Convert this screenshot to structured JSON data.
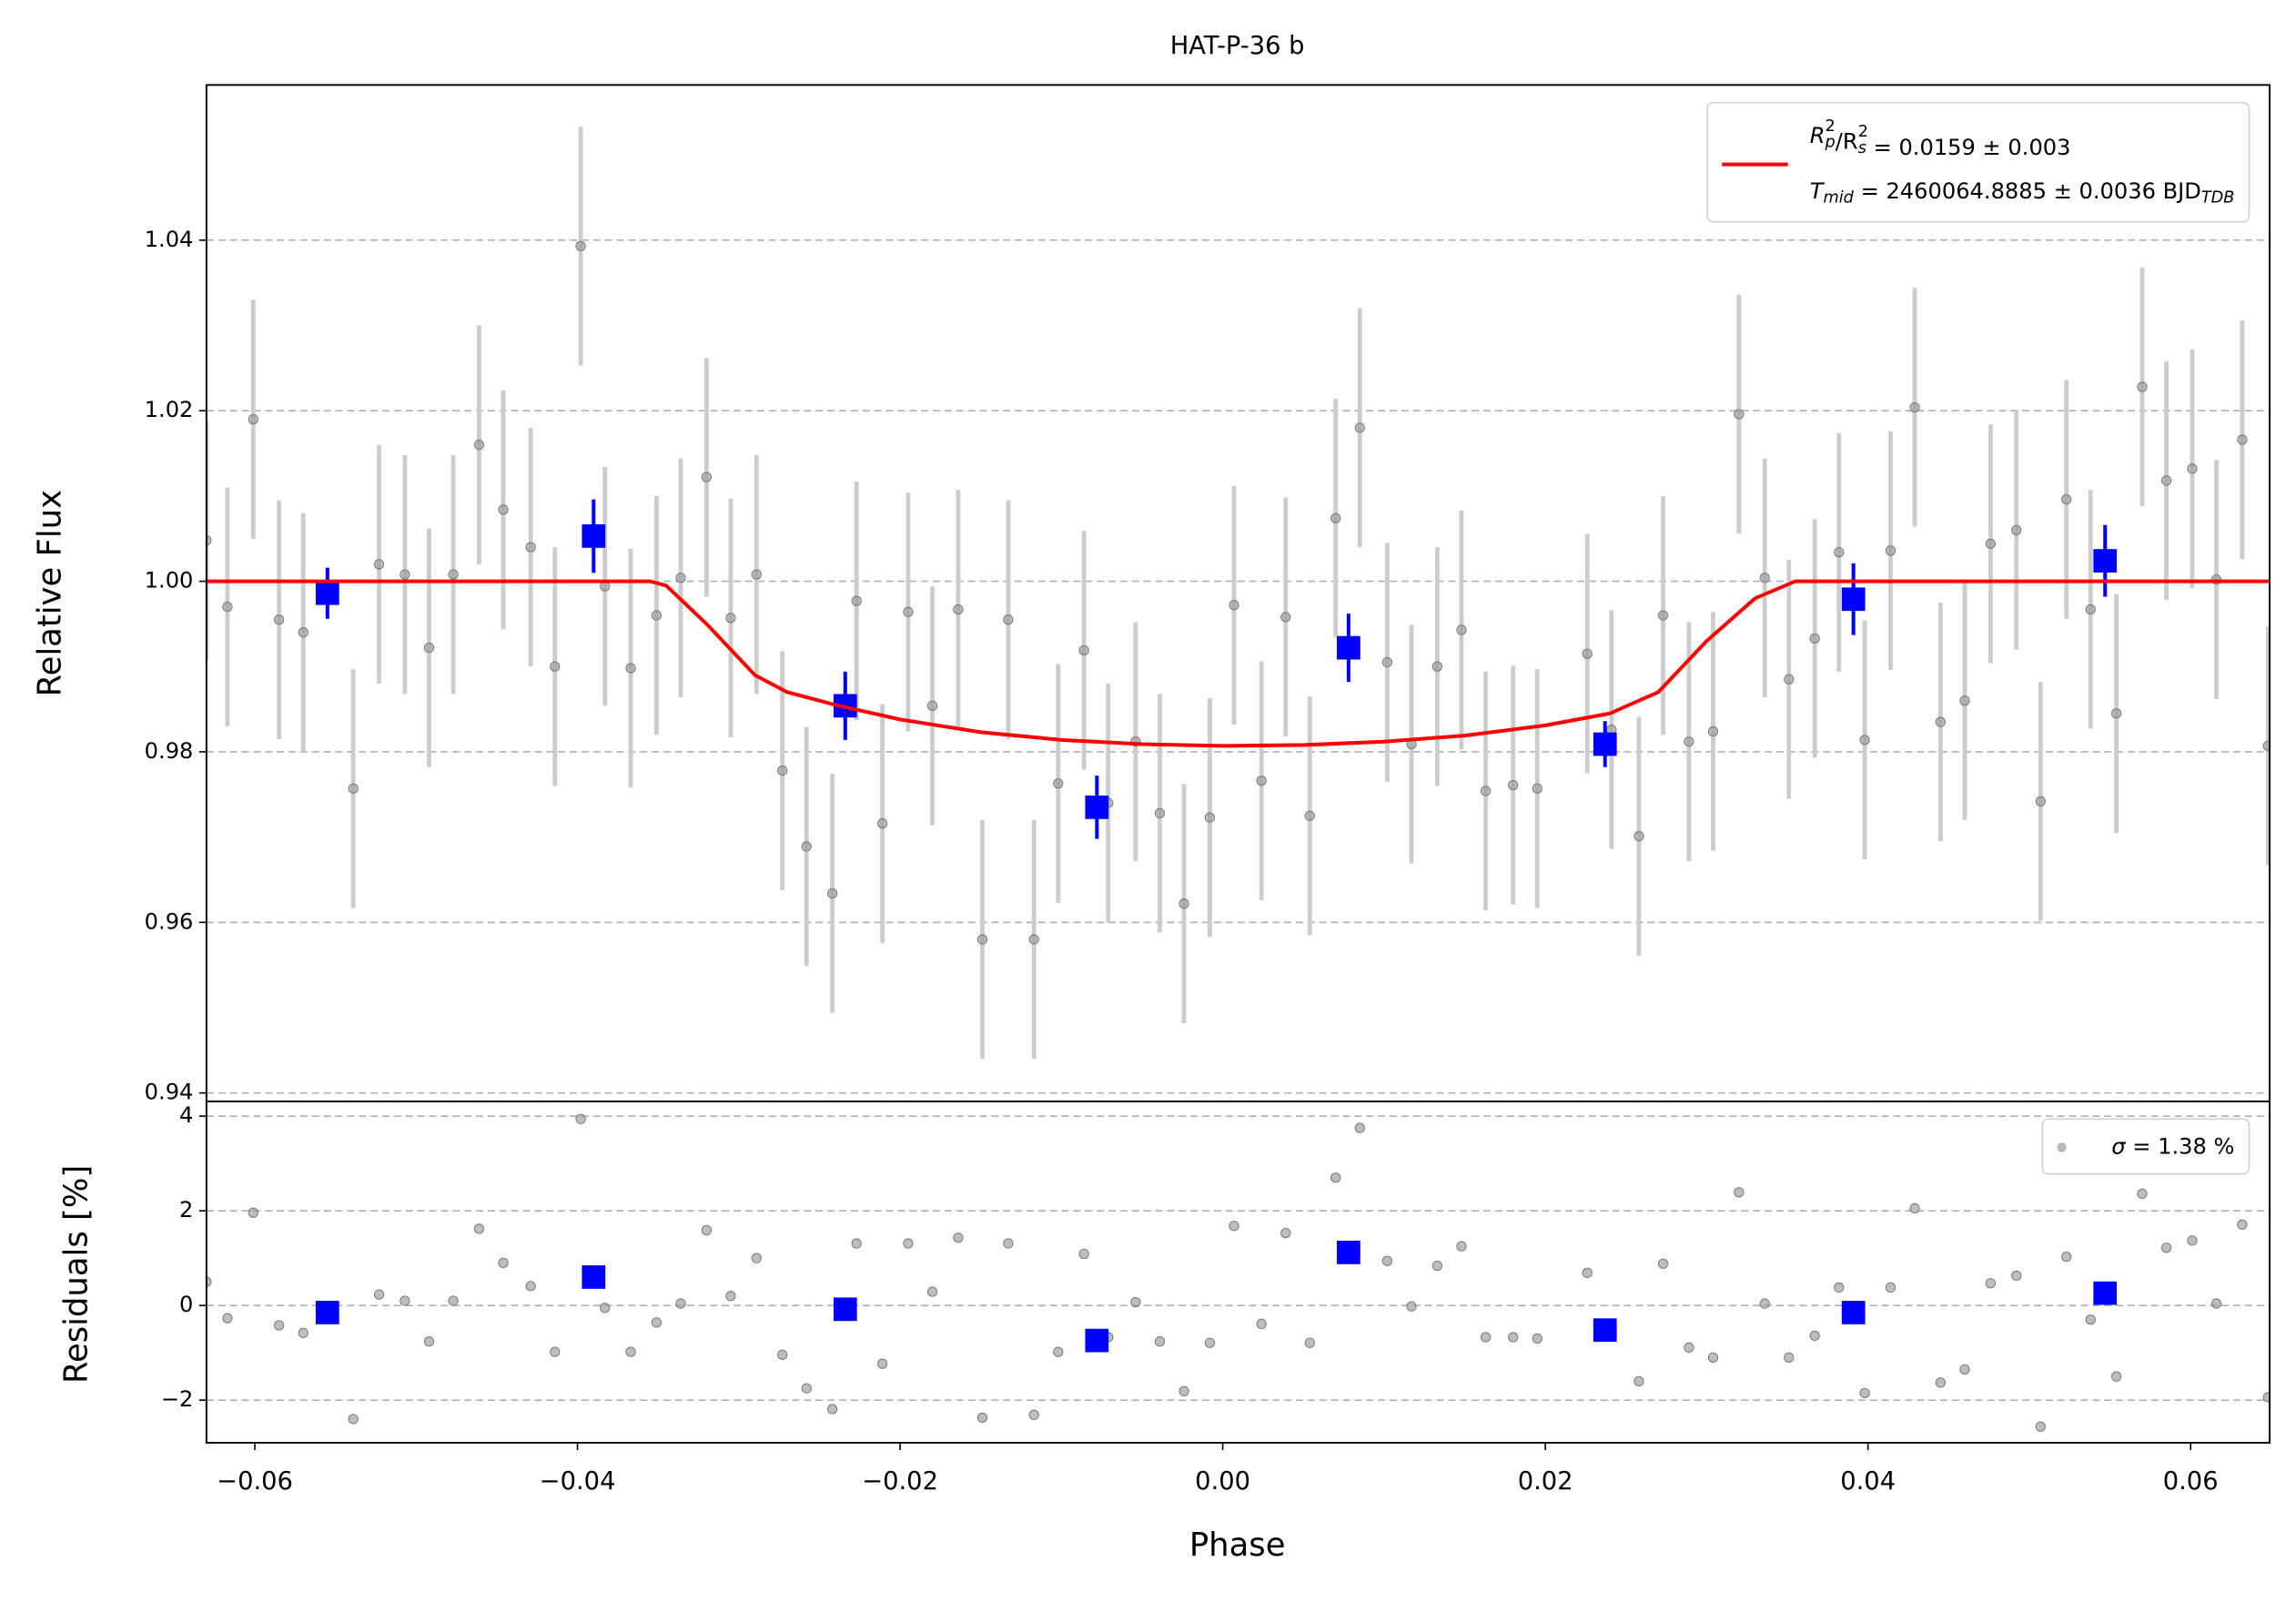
{
  "chart_data": [
    {
      "type": "scatter",
      "title": "HAT-P-36 b",
      "y_label": "Relative Flux",
      "xlim": [
        -0.063,
        0.0649
      ],
      "ylim": [
        0.939,
        1.0582
      ],
      "yticks": [
        0.94,
        0.96,
        0.98,
        {
          "value": 1,
          "label": "1.00"
        },
        1.02,
        1.04
      ],
      "grid": true,
      "legend": "upper right",
      "series": [
        {
          "color": "#999999",
          "error_color": "#cccccc",
          "marker": "circle",
          "yerr": 0.014,
          "x": [
            -0.063,
            -0.0617,
            -0.0601,
            -0.0585,
            -0.057,
            -0.0539,
            -0.0523,
            -0.0507,
            -0.0492,
            -0.0477,
            -0.0461,
            -0.0446,
            -0.0429,
            -0.0414,
            -0.0398,
            -0.0383,
            -0.0367,
            -0.0351,
            -0.0336,
            -0.032,
            -0.0305,
            -0.0289,
            -0.0273,
            -0.0258,
            -0.0242,
            -0.0227,
            -0.0211,
            -0.0195,
            -0.018,
            -0.0164,
            -0.0149,
            -0.0133,
            -0.0117,
            -0.0102,
            -0.0086,
            -0.0071,
            -0.0054,
            -0.0039,
            -0.0024,
            -0.0008,
            0.0007,
            0.0024,
            0.0039,
            0.0054,
            0.007,
            0.0085,
            0.0102,
            0.0117,
            0.0133,
            0.0148,
            0.0163,
            0.018,
            0.0195,
            0.0226,
            0.0241,
            0.0258,
            0.0273,
            0.0289,
            0.0304,
            0.032,
            0.0336,
            0.0351,
            0.0367,
            0.0382,
            0.0398,
            0.0414,
            0.0429,
            0.0445,
            0.046,
            0.0476,
            0.0492,
            0.0507,
            0.0523,
            0.0538,
            0.0554,
            0.057,
            0.0585,
            0.0601,
            0.0616,
            0.0632,
            0.0648
          ],
          "y": [
            1.0048,
            0.997,
            1.019,
            0.9955,
            0.994,
            0.9757,
            1.002,
            1.0008,
            0.9922,
            1.0008,
            1.016,
            1.0084,
            1.004,
            0.99,
            1.0393,
            0.9994,
            0.9898,
            0.996,
            1.0004,
            1.0122,
            0.9957,
            1.0008,
            0.9778,
            0.9689,
            0.9634,
            0.9977,
            0.9716,
            0.9964,
            0.9854,
            0.9967,
            0.958,
            0.9955,
            0.958,
            0.9763,
            0.9919,
            0.974,
            0.9812,
            0.9728,
            0.9622,
            0.9723,
            0.9972,
            0.9766,
            0.9958,
            0.9725,
            1.0074,
            1.018,
            0.9905,
            0.9809,
            0.99,
            0.9943,
            0.9754,
            0.9761,
            0.9757,
            0.9915,
            0.9826,
            0.9701,
            0.996,
            0.9812,
            0.9824,
            1.0196,
            1.0004,
            0.9885,
            0.9933,
            1.0034,
            0.9814,
            1.0036,
            1.0204,
            0.9835,
            0.986,
            1.0044,
            1.006,
            0.9742,
            1.0096,
            0.9967,
            0.9845,
            1.0228,
            1.0118,
            1.0132,
            1.0002,
            1.0166,
            0.9807
          ]
        },
        {
          "color": "#0000ff",
          "error_color": "#0000ff",
          "marker": "square",
          "x": [
            -0.0555,
            -0.039,
            -0.0234,
            -0.0078,
            0.0078,
            0.0237,
            0.0391,
            0.0547
          ],
          "y": [
            0.9986,
            1.0053,
            0.9854,
            0.9735,
            0.9922,
            0.9809,
            0.9979,
            1.0024
          ],
          "yerr": [
            0.003,
            0.0043,
            0.004,
            0.0037,
            0.004,
            0.0027,
            0.0042,
            0.0042
          ]
        },
        {
          "color": "#ff0000",
          "line": true,
          "label": [
            [
              "R",
              {
                "sup": "2",
                "sub": "p"
              },
              "/R",
              {
                "sup": "2",
                "sub": "s"
              },
              " = 0.0159 ± 0.003"
            ],
            [
              "T",
              {
                "sub": "mid"
              },
              " = 2460064.8885 ± 0.0036 BJD",
              {
                "sub": "TDB"
              }
            ]
          ],
          "x": [
            -0.063,
            -0.0355,
            -0.0345,
            -0.032,
            -0.029,
            -0.027,
            -0.024,
            -0.02,
            -0.015,
            -0.01,
            -0.005,
            0,
            0.005,
            0.01,
            0.015,
            0.02,
            0.024,
            0.027,
            0.03,
            0.033,
            0.0355,
            0.0649
          ],
          "y": [
            1,
            1,
            0.9995,
            0.995,
            0.989,
            0.987,
            0.9855,
            0.9838,
            0.9823,
            0.9814,
            0.9809,
            0.9807,
            0.9808,
            0.9812,
            0.9819,
            0.9831,
            0.9845,
            0.987,
            0.993,
            0.998,
            1,
            1
          ]
        }
      ]
    },
    {
      "type": "scatter",
      "y_label": "Residuals [%]",
      "x_label": "Phase",
      "xlim": [
        -0.063,
        0.0649
      ],
      "ylim": [
        -2.9,
        4.31
      ],
      "xticks": [
        {
          "value": -0.06,
          "label": "−0.06"
        },
        {
          "value": -0.04,
          "label": "−0.04"
        },
        {
          "value": -0.02,
          "label": "−0.02"
        },
        {
          "value": 0,
          "label": "0.00"
        },
        0.02,
        0.04,
        0.06
      ],
      "yticks": [
        {
          "value": -2,
          "label": "−2"
        },
        0,
        2,
        4
      ],
      "grid": true,
      "legend": "upper right",
      "series": [
        {
          "color": "#999999",
          "marker": "circle",
          "label": [
            [
              "σ",
              " = 1.38 %"
            ]
          ],
          "x": [
            -0.063,
            -0.0617,
            -0.0601,
            -0.0585,
            -0.057,
            -0.0539,
            -0.0523,
            -0.0507,
            -0.0492,
            -0.0477,
            -0.0461,
            -0.0446,
            -0.0429,
            -0.0414,
            -0.0398,
            -0.0383,
            -0.0367,
            -0.0351,
            -0.0336,
            -0.032,
            -0.0305,
            -0.0289,
            -0.0273,
            -0.0258,
            -0.0242,
            -0.0227,
            -0.0211,
            -0.0195,
            -0.018,
            -0.0164,
            -0.0149,
            -0.0133,
            -0.0117,
            -0.0102,
            -0.0086,
            -0.0071,
            -0.0054,
            -0.0039,
            -0.0024,
            -0.0008,
            0.0007,
            0.0024,
            0.0039,
            0.0054,
            0.007,
            0.0085,
            0.0102,
            0.0117,
            0.0133,
            0.0148,
            0.0163,
            0.018,
            0.0195,
            0.0226,
            0.0241,
            0.0258,
            0.0273,
            0.0289,
            0.0304,
            0.032,
            0.0336,
            0.0351,
            0.0367,
            0.0382,
            0.0398,
            0.0414,
            0.0429,
            0.0445,
            0.046,
            0.0476,
            0.0492,
            0.0507,
            0.0523,
            0.0538,
            0.0554,
            0.057,
            0.0585,
            0.0601,
            0.0616,
            0.0632,
            0.0648
          ],
          "y": [
            0.5,
            -0.27,
            1.96,
            -0.42,
            -0.58,
            -2.4,
            0.23,
            0.1,
            -0.76,
            0.1,
            1.62,
            0.9,
            0.41,
            -0.98,
            3.94,
            -0.05,
            -0.98,
            -0.36,
            0.04,
            1.59,
            0.2,
            1.0,
            -1.04,
            -1.75,
            -2.19,
            1.31,
            -1.23,
            1.31,
            0.29,
            1.43,
            -2.37,
            1.31,
            -2.31,
            -0.98,
            1.09,
            -0.67,
            0.07,
            -0.76,
            -1.81,
            -0.79,
            1.68,
            -0.39,
            1.53,
            -0.79,
            2.7,
            3.75,
            0.94,
            -0.02,
            0.84,
            1.25,
            -0.67,
            -0.67,
            -0.7,
            0.69,
            -0.39,
            -1.6,
            0.88,
            -0.89,
            -1.1,
            2.39,
            0.04,
            -1.1,
            -0.64,
            0.38,
            -1.85,
            0.38,
            2.05,
            -1.63,
            -1.35,
            0.47,
            0.63,
            -2.56,
            1.03,
            -0.3,
            -1.5,
            2.36,
            1.22,
            1.37,
            0.04,
            1.71,
            -1.94
          ]
        },
        {
          "color": "#0000ff",
          "marker": "square",
          "x": [
            -0.0555,
            -0.039,
            -0.0234,
            -0.0078,
            0.0078,
            0.0237,
            0.0391,
            0.0547
          ],
          "y": [
            -0.15,
            0.6,
            -0.08,
            -0.74,
            1.12,
            -0.52,
            -0.15,
            0.26
          ]
        }
      ]
    }
  ]
}
